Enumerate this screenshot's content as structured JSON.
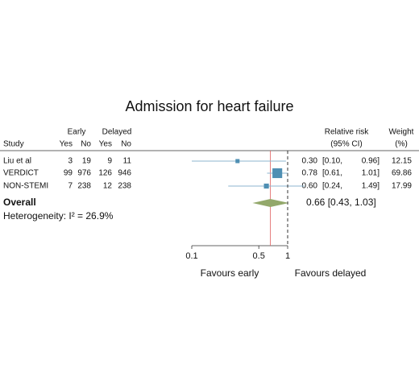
{
  "chart_data": {
    "type": "forest",
    "title": "Admission for heart failure",
    "headers": {
      "study": "Study",
      "early": "Early",
      "delayed": "Delayed",
      "yes_early": "Yes",
      "no_early": "No",
      "yes_delayed": "Yes",
      "no_delayed": "No",
      "rr": "Relative risk",
      "ci": "(95% CI)",
      "weight": "Weight",
      "weight_unit": "(%)"
    },
    "studies": [
      "Liu et al",
      "VERDICT",
      "NON-STEMI"
    ],
    "early_yes": [
      3,
      99,
      7
    ],
    "early_no": [
      19,
      976,
      238
    ],
    "delayed_yes": [
      9,
      126,
      12
    ],
    "delayed_no": [
      11,
      946,
      238
    ],
    "rr": {
      "values": [
        0.3,
        0.78,
        0.6
      ],
      "value_labels": [
        "0.30",
        "0.78",
        "0.60"
      ]
    },
    "ci_low": {
      "values": [
        0.1,
        0.61,
        0.24
      ],
      "value_labels": [
        "[0.10,",
        "[0.61,",
        "[0.24,"
      ]
    },
    "ci_high": {
      "values": [
        0.96,
        1.01,
        1.49
      ],
      "value_labels": [
        "0.96]",
        "1.01]",
        "1.49]"
      ]
    },
    "weight": [
      12.15,
      69.86,
      17.99
    ],
    "overall": {
      "label": "Overall",
      "rr": 0.66,
      "ci_low": 0.43,
      "ci_high": 1.03,
      "text": "0.66 [0.43, 1.03]"
    },
    "heterogeneity": "Heterogeneity: I² = 26.9%",
    "xlim": [
      0.1,
      1
    ],
    "xticks": [
      0.1,
      0.5,
      1
    ],
    "log_x": true,
    "x_labels": {
      "left": "Favours early",
      "right": "Favours delayed"
    },
    "marker_color": "#4f8fb3",
    "ci_color": "#8db6cf",
    "diamond_color": "#93a86b",
    "overall_line_color": "#e06060"
  }
}
